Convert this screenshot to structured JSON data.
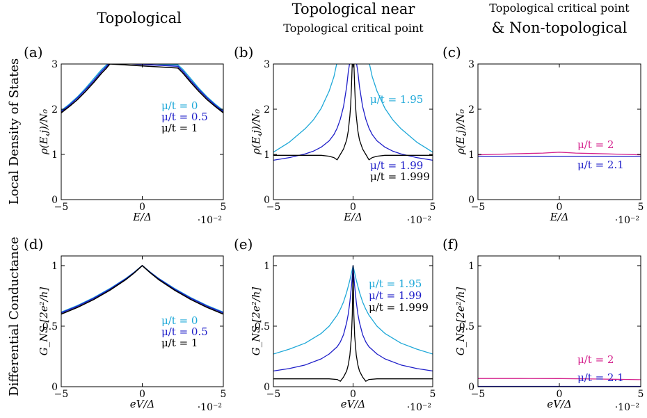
{
  "figure": {
    "column_titles": [
      {
        "main": "Topological",
        "sub": ""
      },
      {
        "main": "Topological near",
        "sub": "Topological critical point"
      },
      {
        "main": "& Non-topological",
        "sub": "Topological critical point"
      }
    ],
    "row_labels": [
      "Local Density of States",
      "Differential Conductance"
    ],
    "colors": {
      "cyan": "#1ea8d8",
      "blue": "#1d1dc8",
      "black": "#000000",
      "magenta": "#d4208c"
    }
  },
  "chart_data": [
    {
      "panel": "(a)",
      "type": "line",
      "xlabel": "E/Δ",
      "ylabel": "ρ(E,j)/N₀",
      "x_exponent": "·10⁻²",
      "xlim": [
        -5,
        5
      ],
      "ylim": [
        0,
        3
      ],
      "xticks": [
        "−5",
        "0",
        "5"
      ],
      "yticks": [
        "0",
        "1",
        "2",
        "3"
      ],
      "x": [
        -5,
        -4.5,
        -4,
        -3.5,
        -3,
        -2.5,
        -2.2,
        -2
      ],
      "series": [
        {
          "name": "μ/t = 0",
          "color": "#1ea8d8",
          "values": [
            1.97,
            2.11,
            2.27,
            2.46,
            2.67,
            2.88,
            2.98,
            3.05
          ]
        },
        {
          "name": "μ/t = 0.5",
          "color": "#1d1dc8",
          "values": [
            1.95,
            2.09,
            2.25,
            2.43,
            2.63,
            2.84,
            2.95,
            3.03
          ]
        },
        {
          "name": "μ/t = 1",
          "color": "#000000",
          "values": [
            1.92,
            2.06,
            2.21,
            2.39,
            2.59,
            2.8,
            2.91,
            3
          ]
        }
      ],
      "mirror": true
    },
    {
      "panel": "(b)",
      "type": "line",
      "xlabel": "E/Δ",
      "ylabel": "ρ(E,j)/N₀",
      "x_exponent": "·10⁻²",
      "xlim": [
        -5,
        5
      ],
      "ylim": [
        0,
        3
      ],
      "xticks": [
        "−5",
        "0",
        "5"
      ],
      "yticks": [
        "0",
        "1",
        "2",
        "3"
      ],
      "x": [
        -5,
        -4,
        -3,
        -2.5,
        -2,
        -1.5,
        -1.2,
        -1,
        -0.8,
        -0.6,
        -0.4,
        -0.3,
        -0.2,
        -0.15,
        -0.1,
        -0.05,
        0
      ],
      "series": [
        {
          "name": "μ/t = 1.95",
          "color": "#1ea8d8",
          "values": [
            1.05,
            1.27,
            1.57,
            1.76,
            2.02,
            2.4,
            2.72,
            3.05,
            3.05,
            3.05,
            3.05,
            3.05,
            3.05,
            3.05,
            3.05,
            3.05,
            3.05
          ]
        },
        {
          "name": "μ/t = 1.99",
          "color": "#1d1dc8",
          "values": [
            0.87,
            0.93,
            1.01,
            1.07,
            1.16,
            1.3,
            1.44,
            1.58,
            1.78,
            2.06,
            2.5,
            2.82,
            3.05,
            3.05,
            3.05,
            3.05,
            3.05
          ]
        },
        {
          "name": "μ/t = 1.999",
          "color": "#000000",
          "values": [
            0.98,
            0.98,
            0.98,
            0.98,
            0.98,
            0.96,
            0.93,
            0.88,
            1.0,
            1.12,
            1.32,
            1.52,
            1.85,
            2.1,
            2.5,
            3.05,
            3.05
          ]
        }
      ],
      "mirror": true
    },
    {
      "panel": "(c)",
      "type": "line",
      "xlabel": "E/Δ",
      "ylabel": "ρ(E,j)/N₀",
      "x_exponent": "·10⁻²",
      "xlim": [
        -5,
        5
      ],
      "ylim": [
        0,
        3
      ],
      "xticks": [
        "−5",
        "0",
        "5"
      ],
      "yticks": [
        "0",
        "1",
        "2",
        "3"
      ],
      "x": [
        -5,
        -4,
        -3,
        -2,
        -1,
        0
      ],
      "series": [
        {
          "name": "μ/t = 2",
          "color": "#d4208c",
          "values": [
            0.99,
            1.0,
            1.01,
            1.02,
            1.03,
            1.05
          ]
        },
        {
          "name": "μ/t = 2.1",
          "color": "#1d1dc8",
          "values": [
            0.96,
            0.96,
            0.96,
            0.96,
            0.96,
            0.96
          ]
        }
      ],
      "mirror": true
    },
    {
      "panel": "(d)",
      "type": "line",
      "xlabel": "eV/Δ",
      "ylabel": "G_NS [2e²/h]",
      "x_exponent": "·10⁻²",
      "xlim": [
        -5,
        5
      ],
      "ylim": [
        0,
        1.08
      ],
      "xticks": [
        "−5",
        "0",
        "5"
      ],
      "yticks": [
        "0",
        "0.5",
        "1"
      ],
      "x": [
        -5,
        -4,
        -3,
        -2,
        -1,
        -0.5,
        0
      ],
      "series": [
        {
          "name": "μ/t = 0",
          "color": "#1ea8d8",
          "values": [
            0.615,
            0.67,
            0.735,
            0.81,
            0.895,
            0.945,
            1.0
          ]
        },
        {
          "name": "μ/t = 0.5",
          "color": "#1d1dc8",
          "values": [
            0.61,
            0.665,
            0.73,
            0.805,
            0.892,
            0.943,
            1.0
          ]
        },
        {
          "name": "μ/t = 1",
          "color": "#000000",
          "values": [
            0.6,
            0.655,
            0.72,
            0.797,
            0.886,
            0.94,
            1.0
          ]
        }
      ],
      "mirror": true
    },
    {
      "panel": "(e)",
      "type": "line",
      "xlabel": "eV/Δ",
      "ylabel": "G_NS [2e²/h]",
      "x_exponent": "·10⁻²",
      "xlim": [
        -5,
        5
      ],
      "ylim": [
        0,
        1.08
      ],
      "xticks": [
        "−5",
        "0",
        "5"
      ],
      "yticks": [
        "0",
        "0.5",
        "1"
      ],
      "x": [
        -5,
        -4,
        -3,
        -2,
        -1.5,
        -1,
        -0.8,
        -0.6,
        -0.4,
        -0.3,
        -0.2,
        -0.1,
        -0.05,
        0
      ],
      "series": [
        {
          "name": "μ/t = 1.95",
          "color": "#1ea8d8",
          "values": [
            0.27,
            0.31,
            0.36,
            0.44,
            0.5,
            0.59,
            0.64,
            0.7,
            0.78,
            0.83,
            0.88,
            0.94,
            0.97,
            1.0
          ]
        },
        {
          "name": "μ/t = 1.99",
          "color": "#1d1dc8",
          "values": [
            0.13,
            0.15,
            0.18,
            0.23,
            0.27,
            0.33,
            0.37,
            0.43,
            0.53,
            0.6,
            0.7,
            0.83,
            0.91,
            1.0
          ]
        },
        {
          "name": "μ/t = 1.999",
          "color": "#000000",
          "values": [
            0.065,
            0.065,
            0.065,
            0.065,
            0.065,
            0.06,
            0.045,
            0.08,
            0.13,
            0.18,
            0.26,
            0.42,
            0.6,
            1.0
          ]
        }
      ],
      "mirror": true
    },
    {
      "panel": "(f)",
      "type": "line",
      "xlabel": "eV/Δ",
      "ylabel": "G_NS [2e²/h]",
      "x_exponent": "·10⁻²",
      "xlim": [
        -5,
        5
      ],
      "ylim": [
        0,
        1.08
      ],
      "xticks": [
        "−5",
        "0",
        "5"
      ],
      "yticks": [
        "0",
        "0.5",
        "1"
      ],
      "x": [
        -5,
        -2.5,
        0,
        2.5,
        5
      ],
      "series": [
        {
          "name": "μ/t = 2",
          "color": "#d4208c",
          "values": [
            0.068,
            0.068,
            0.067,
            0.063,
            0.058
          ]
        },
        {
          "name": "μ/t = 2.1",
          "color": "#1d1dc8",
          "values": [
            0.003,
            0.003,
            0.003,
            0.003,
            0.003
          ]
        }
      ],
      "mirror": false
    }
  ]
}
